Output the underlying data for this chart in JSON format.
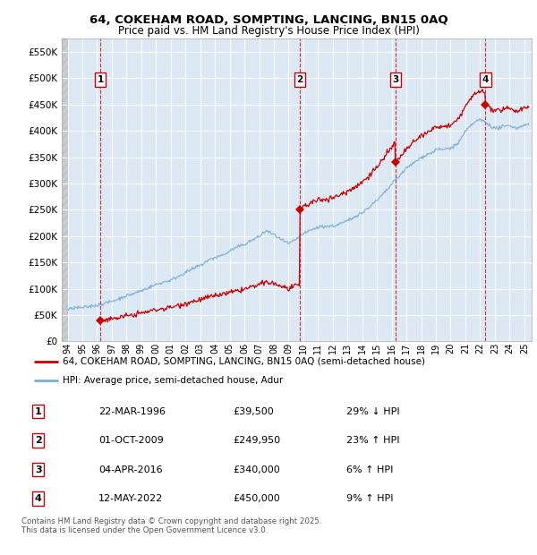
{
  "title_line1": "64, COKEHAM ROAD, SOMPTING, LANCING, BN15 0AQ",
  "title_line2": "Price paid vs. HM Land Registry's House Price Index (HPI)",
  "bg_color": "#dce9f5",
  "ylim": [
    0,
    575000
  ],
  "yticks": [
    0,
    50000,
    100000,
    150000,
    200000,
    250000,
    300000,
    350000,
    400000,
    450000,
    500000,
    550000
  ],
  "ytick_labels": [
    "£0",
    "£50K",
    "£100K",
    "£150K",
    "£200K",
    "£250K",
    "£300K",
    "£350K",
    "£400K",
    "£450K",
    "£500K",
    "£550K"
  ],
  "xlim_start": 1993.6,
  "xlim_end": 2025.5,
  "xticks": [
    1994,
    1995,
    1996,
    1997,
    1998,
    1999,
    2000,
    2001,
    2002,
    2003,
    2004,
    2005,
    2006,
    2007,
    2008,
    2009,
    2010,
    2011,
    2012,
    2013,
    2014,
    2015,
    2016,
    2017,
    2018,
    2019,
    2020,
    2021,
    2022,
    2023,
    2024,
    2025
  ],
  "sale_dates": [
    1996.22,
    2009.75,
    2016.26,
    2022.37
  ],
  "sale_prices": [
    39500,
    249950,
    340000,
    450000
  ],
  "sale_labels": [
    "1",
    "2",
    "3",
    "4"
  ],
  "property_line_color": "#cc0000",
  "hpi_line_color": "#7aadd4",
  "legend_property": "64, COKEHAM ROAD, SOMPTING, LANCING, BN15 0AQ (semi-detached house)",
  "legend_hpi": "HPI: Average price, semi-detached house, Adur",
  "table_rows": [
    [
      "1",
      "22-MAR-1996",
      "£39,500",
      "29% ↓ HPI"
    ],
    [
      "2",
      "01-OCT-2009",
      "£249,950",
      "23% ↑ HPI"
    ],
    [
      "3",
      "04-APR-2016",
      "£340,000",
      "6% ↑ HPI"
    ],
    [
      "4",
      "12-MAY-2022",
      "£450,000",
      "9% ↑ HPI"
    ]
  ],
  "footer": "Contains HM Land Registry data © Crown copyright and database right 2025.\nThis data is licensed under the Open Government Licence v3.0."
}
